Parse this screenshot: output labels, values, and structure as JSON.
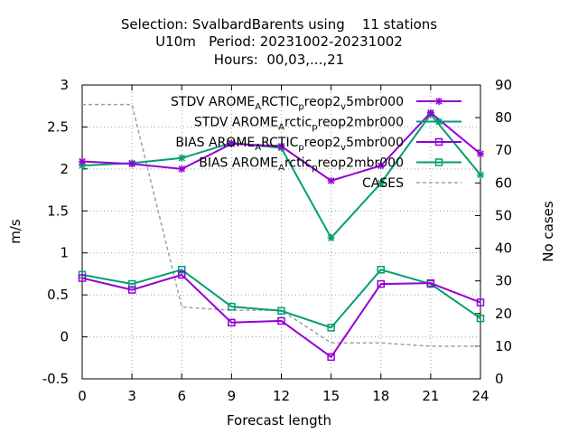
{
  "chart_data": {
    "type": "line",
    "title": [
      "Selection: SvalbardBarents using    11 stations",
      "U10m   Period: 20231002-20231002",
      "Hours:  00,03,...,21"
    ],
    "xlabel": "Forecast length",
    "ylabel": "m/s",
    "y2label": "No cases",
    "x": [
      0,
      3,
      6,
      9,
      12,
      15,
      18,
      21,
      24
    ],
    "x_ticks": [
      "0",
      "3",
      "6",
      "9",
      "12",
      "15",
      "18",
      "21",
      "24"
    ],
    "y_ticks": [
      "-0.5",
      "0",
      "0.5",
      "1",
      "1.5",
      "2",
      "2.5",
      "3"
    ],
    "y2_ticks": [
      "0",
      "10",
      "20",
      "30",
      "40",
      "50",
      "60",
      "70",
      "80",
      "90"
    ],
    "xlim": [
      0,
      24
    ],
    "ylim": [
      -0.5,
      3
    ],
    "y2lim": [
      0,
      90
    ],
    "grid": true,
    "legend_position": "top-right",
    "series": [
      {
        "name": "STDV AROME_ARCTIC_preop2_v5mbr000",
        "label_parts": [
          [
            "STDV AROME",
            ""
          ],
          [
            "A",
            "sub"
          ],
          [
            "RCTIC",
            ""
          ],
          [
            "p",
            "sub"
          ],
          [
            "reop2",
            ""
          ],
          [
            "v",
            "sub"
          ],
          [
            "5mbr000",
            ""
          ]
        ],
        "color": "#9400d3",
        "marker": "star",
        "axis": "y",
        "values": [
          2.09,
          2.06,
          2.0,
          2.3,
          2.27,
          1.86,
          2.04,
          2.67,
          2.18
        ]
      },
      {
        "name": "STDV AROME_Arctic_preop2mbr000",
        "label_parts": [
          [
            "STDV AROME",
            ""
          ],
          [
            "A",
            "sub"
          ],
          [
            "rctic",
            ""
          ],
          [
            "p",
            "sub"
          ],
          [
            "reop2mbr000",
            ""
          ]
        ],
        "color": "#009e73",
        "marker": "star",
        "axis": "y",
        "values": [
          2.04,
          2.07,
          2.13,
          2.31,
          2.25,
          1.18,
          1.83,
          2.65,
          1.93
        ]
      },
      {
        "name": "BIAS AROME_ARCTIC_preop2_v5mbr000",
        "label_parts": [
          [
            "BIAS AROME",
            ""
          ],
          [
            "A",
            "sub"
          ],
          [
            "RCTIC",
            ""
          ],
          [
            "p",
            "sub"
          ],
          [
            "reop2",
            ""
          ],
          [
            "v",
            "sub"
          ],
          [
            "5mbr000",
            ""
          ]
        ],
        "color": "#9400d3",
        "marker": "square",
        "axis": "y",
        "values": [
          0.7,
          0.56,
          0.74,
          0.17,
          0.19,
          -0.24,
          0.63,
          0.64,
          0.41
        ]
      },
      {
        "name": "BIAS AROME_Arctic_preop2mbr000",
        "label_parts": [
          [
            "BIAS AROME",
            ""
          ],
          [
            "A",
            "sub"
          ],
          [
            "rctic",
            ""
          ],
          [
            "p",
            "sub"
          ],
          [
            "reop2mbr000",
            ""
          ]
        ],
        "color": "#009e73",
        "marker": "square",
        "axis": "y",
        "values": [
          0.74,
          0.63,
          0.8,
          0.36,
          0.31,
          0.11,
          0.8,
          0.63,
          0.22
        ]
      },
      {
        "name": "CASES",
        "label_parts": [
          [
            "CASES",
            ""
          ]
        ],
        "color": "#a0a0a0",
        "marker": "none",
        "dashed": true,
        "axis": "y2",
        "values": [
          84,
          84,
          22,
          21,
          21,
          11,
          11,
          10,
          10
        ]
      }
    ]
  }
}
